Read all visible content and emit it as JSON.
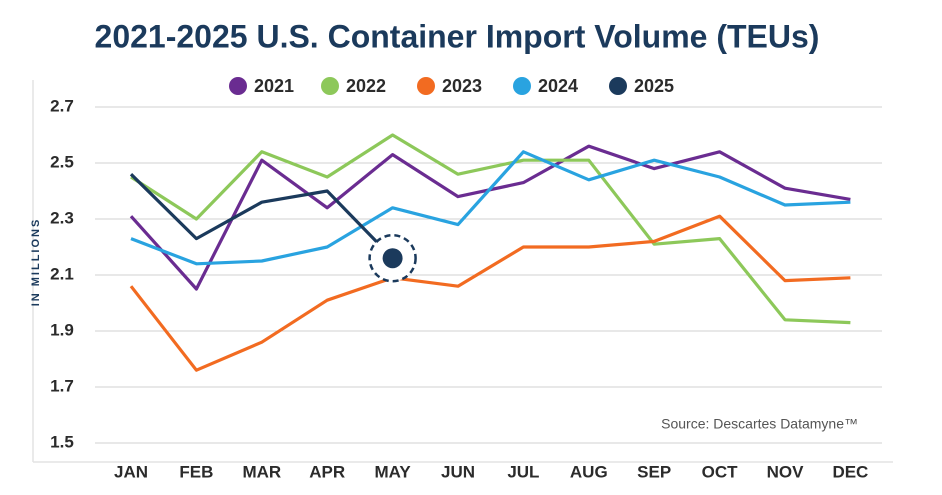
{
  "chart_data": {
    "type": "line",
    "title": "2021-2025 U.S. Container Import Volume (TEUs)",
    "y_label": "IN MILLIONS",
    "annotation": "Source: Descartes Datamyne™",
    "categories": [
      "JAN",
      "FEB",
      "MAR",
      "APR",
      "MAY",
      "JUN",
      "JUL",
      "AUG",
      "SEP",
      "OCT",
      "NOV",
      "DEC"
    ],
    "series": [
      {
        "name": "2021",
        "color": "#6a2c91",
        "values": [
          2.31,
          2.05,
          2.51,
          2.34,
          2.53,
          2.38,
          2.43,
          2.56,
          2.48,
          2.54,
          2.41,
          2.37
        ]
      },
      {
        "name": "2022",
        "color": "#8dc85a",
        "values": [
          2.45,
          2.3,
          2.54,
          2.45,
          2.6,
          2.46,
          2.51,
          2.51,
          2.21,
          2.23,
          1.94,
          1.93
        ]
      },
      {
        "name": "2023",
        "color": "#f26b21",
        "values": [
          2.06,
          1.76,
          1.86,
          2.01,
          2.09,
          2.06,
          2.2,
          2.2,
          2.22,
          2.31,
          2.08,
          2.09
        ]
      },
      {
        "name": "2024",
        "color": "#29a3e0",
        "values": [
          2.23,
          2.14,
          2.15,
          2.2,
          2.34,
          2.28,
          2.54,
          2.44,
          2.51,
          2.45,
          2.35,
          2.36
        ]
      },
      {
        "name": "2025",
        "color": "#1b3a5c",
        "values": [
          2.46,
          2.23,
          2.36,
          2.4,
          2.16,
          null,
          null,
          null,
          null,
          null,
          null,
          null
        ]
      }
    ],
    "ylim": [
      1.5,
      2.7
    ],
    "yticks": [
      1.5,
      1.7,
      1.9,
      2.1,
      2.3,
      2.5,
      2.7
    ],
    "grid": true,
    "legend": "top"
  }
}
